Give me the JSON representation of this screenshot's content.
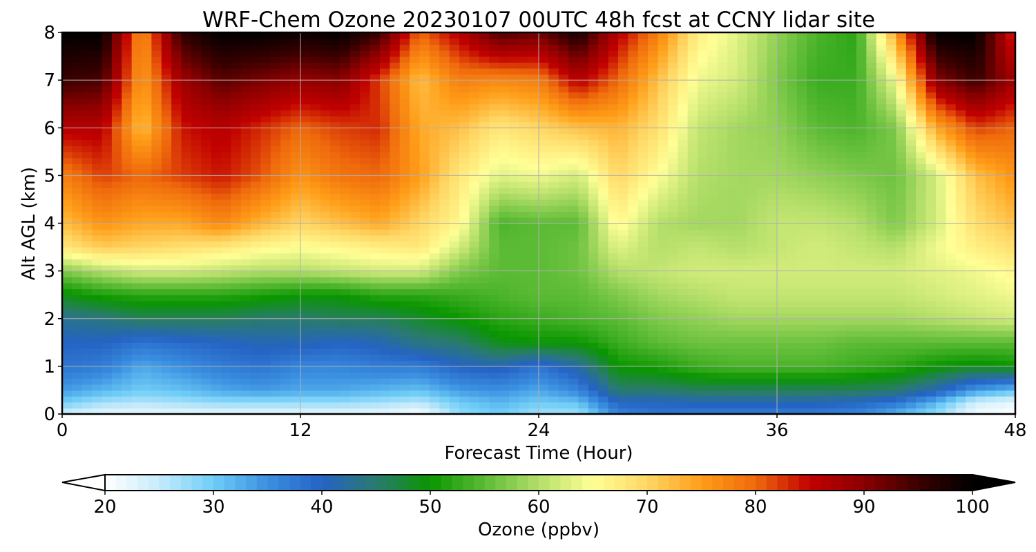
{
  "chart_data": {
    "type": "heatmap",
    "subtype": "filled-contour",
    "title": "WRF-Chem Ozone  20230107 00UTC 48h fcst at CCNY lidar site",
    "xlabel": "Forecast Time (Hour)",
    "ylabel": "Alt AGL (km)",
    "xlim": [
      0,
      48
    ],
    "ylim": [
      0,
      8
    ],
    "xticks": [
      "0",
      "12",
      "24",
      "36",
      "48"
    ],
    "yticks": [
      "0",
      "1",
      "2",
      "3",
      "4",
      "5",
      "6",
      "7",
      "8"
    ],
    "grid": true,
    "colorbar": {
      "orientation": "horizontal",
      "location": "bottom",
      "label": "Ozone  (ppbv)",
      "range": [
        20,
        100
      ],
      "extend": "both",
      "ticks": [
        "20",
        "30",
        "40",
        "50",
        "60",
        "70",
        "80",
        "90",
        "100"
      ],
      "colors": [
        "#ffffff",
        "#c6ebfb",
        "#6fcdf7",
        "#3a8fe0",
        "#2563c4",
        "#2a7a6f",
        "#0a9600",
        "#5cbb35",
        "#b5df6a",
        "#ffff96",
        "#ffd765",
        "#ff9d18",
        "#ef6a0c",
        "#c10000",
        "#8b0000",
        "#3a0000",
        "#000000"
      ]
    },
    "x": [
      0,
      2,
      4,
      6,
      8,
      10,
      12,
      14,
      16,
      18,
      20,
      22,
      24,
      26,
      28,
      30,
      32,
      34,
      36,
      38,
      40,
      42,
      44,
      46,
      48
    ],
    "y": [
      0,
      0.25,
      0.5,
      1,
      1.5,
      2,
      2.5,
      3,
      3.5,
      4,
      5,
      6,
      7,
      8
    ],
    "z": [
      [
        24,
        22,
        22,
        22,
        22,
        22,
        22,
        22,
        22,
        20,
        28,
        30,
        27,
        27,
        36,
        38,
        37,
        37,
        37,
        37,
        36,
        32,
        28,
        21,
        20
      ],
      [
        30,
        27,
        26,
        27,
        28,
        28,
        28,
        28,
        27,
        26,
        30,
        32,
        30,
        31,
        40,
        40,
        41,
        41,
        41,
        41,
        40,
        38,
        32,
        24,
        22
      ],
      [
        34,
        32,
        30,
        31,
        33,
        34,
        33,
        33,
        32,
        31,
        34,
        35,
        33,
        36,
        45,
        45,
        46,
        46,
        46,
        46,
        46,
        45,
        41,
        34,
        31
      ],
      [
        38,
        37,
        33,
        35,
        37,
        38,
        36,
        36,
        37,
        37,
        40,
        41,
        38,
        42,
        50,
        51,
        53,
        54,
        54,
        54,
        53,
        52,
        50,
        49,
        50
      ],
      [
        40,
        40,
        38,
        39,
        40,
        41,
        41,
        40,
        41,
        44,
        45,
        49,
        50,
        50,
        53,
        55,
        56,
        56,
        56,
        56,
        55,
        55,
        55,
        55,
        55
      ],
      [
        43,
        44,
        46,
        46,
        46,
        45,
        45,
        46,
        46,
        48,
        50,
        52,
        53,
        54,
        55,
        57,
        58,
        59,
        59,
        59,
        59,
        59,
        60,
        61,
        62
      ],
      [
        49,
        51,
        52,
        52,
        52,
        51,
        50,
        50,
        52,
        52,
        53,
        54,
        55,
        55,
        57,
        59,
        60,
        61,
        61,
        61,
        61,
        61,
        62,
        63,
        64
      ],
      [
        57,
        60,
        62,
        62,
        61,
        60,
        60,
        61,
        62,
        62,
        57,
        55,
        55,
        56,
        60,
        61,
        62,
        62,
        62,
        62,
        62,
        62,
        63,
        64,
        66
      ],
      [
        68,
        71,
        70,
        69,
        68,
        66,
        65,
        66,
        67,
        68,
        62,
        55,
        55,
        56,
        63,
        60,
        61,
        60,
        61,
        62,
        61,
        60,
        64,
        67,
        69
      ],
      [
        72,
        76,
        74,
        74,
        77,
        73,
        70,
        72,
        74,
        70,
        66,
        54,
        55,
        55,
        66,
        60,
        59,
        59,
        61,
        61,
        60,
        57,
        62,
        69,
        72
      ],
      [
        78,
        82,
        80,
        82,
        84,
        81,
        76,
        79,
        80,
        75,
        68,
        63,
        64,
        62,
        70,
        65,
        60,
        59,
        59,
        58,
        57,
        56,
        62,
        72,
        76
      ],
      [
        86,
        86,
        72,
        84,
        86,
        83,
        80,
        82,
        83,
        74,
        72,
        68,
        70,
        72,
        73,
        69,
        61,
        59,
        58,
        55,
        54,
        57,
        74,
        82,
        80
      ],
      [
        95,
        94,
        75,
        88,
        93,
        91,
        89,
        90,
        82,
        72,
        78,
        77,
        78,
        86,
        80,
        72,
        64,
        62,
        57,
        53,
        53,
        64,
        90,
        95,
        88
      ],
      [
        100,
        100,
        76,
        96,
        100,
        100,
        99,
        100,
        95,
        80,
        86,
        94,
        92,
        98,
        86,
        78,
        67,
        63,
        58,
        54,
        52,
        75,
        100,
        100,
        82
      ]
    ]
  }
}
